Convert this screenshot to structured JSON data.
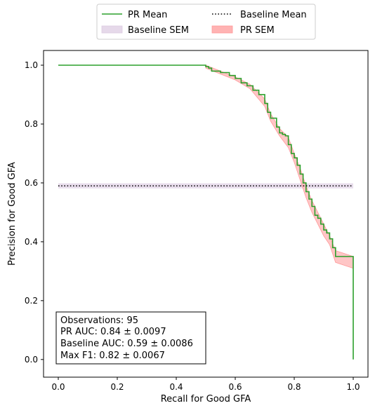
{
  "chart_data": {
    "type": "line",
    "xlabel": "Recall for Good GFA",
    "ylabel": "Precision for Good GFA",
    "xlim": [
      -0.05,
      1.05
    ],
    "ylim": [
      -0.06,
      1.05
    ],
    "xticks": [
      "0.0",
      "0.2",
      "0.4",
      "0.6",
      "0.8",
      "1.0"
    ],
    "yticks": [
      "0.0",
      "0.2",
      "0.4",
      "0.6",
      "0.8",
      "1.0"
    ],
    "grid": false,
    "legend_position": "top-center, above plot",
    "legend": {
      "pr_mean": "PR Mean",
      "baseline_mean": "Baseline Mean",
      "baseline_sem": "Baseline SEM",
      "pr_sem": "PR SEM"
    },
    "colors": {
      "pr_mean": "#2ca02c",
      "baseline_mean": "#000000",
      "baseline_sem": "#e6d9ea",
      "pr_sem": "#ff9999"
    },
    "series": [
      {
        "name": "PR Mean",
        "x": [
          0.0,
          0.48,
          0.5,
          0.51,
          0.52,
          0.55,
          0.58,
          0.6,
          0.62,
          0.64,
          0.66,
          0.68,
          0.7,
          0.71,
          0.72,
          0.74,
          0.75,
          0.76,
          0.77,
          0.78,
          0.79,
          0.8,
          0.81,
          0.82,
          0.83,
          0.84,
          0.85,
          0.86,
          0.87,
          0.88,
          0.89,
          0.9,
          0.91,
          0.92,
          0.93,
          0.94,
          1.0,
          1.0
        ],
        "y": [
          1.0,
          1.0,
          0.995,
          0.99,
          0.98,
          0.975,
          0.965,
          0.955,
          0.94,
          0.93,
          0.915,
          0.9,
          0.87,
          0.84,
          0.82,
          0.79,
          0.77,
          0.765,
          0.76,
          0.73,
          0.7,
          0.685,
          0.66,
          0.63,
          0.6,
          0.57,
          0.545,
          0.52,
          0.49,
          0.48,
          0.46,
          0.44,
          0.43,
          0.41,
          0.38,
          0.35,
          0.33,
          0.0
        ]
      },
      {
        "name": "Baseline Mean",
        "x": [
          0.0,
          1.0
        ],
        "y": [
          0.59,
          0.59
        ]
      }
    ],
    "bands": [
      {
        "name": "Baseline SEM",
        "x": [
          0.0,
          1.0
        ],
        "lower": [
          0.5814,
          0.5814
        ],
        "upper": [
          0.5986,
          0.5986
        ]
      },
      {
        "name": "PR SEM",
        "x": [
          0.5,
          0.55,
          0.6,
          0.65,
          0.7,
          0.72,
          0.75,
          0.78,
          0.8,
          0.82,
          0.84,
          0.86,
          0.88,
          0.9,
          0.92,
          0.94,
          0.97,
          1.0
        ],
        "lower": [
          0.99,
          0.97,
          0.95,
          0.92,
          0.86,
          0.81,
          0.76,
          0.72,
          0.67,
          0.61,
          0.55,
          0.5,
          0.46,
          0.42,
          0.39,
          0.33,
          0.32,
          0.31
        ],
        "upper": [
          1.0,
          0.98,
          0.96,
          0.935,
          0.885,
          0.835,
          0.785,
          0.755,
          0.7,
          0.65,
          0.59,
          0.54,
          0.5,
          0.46,
          0.42,
          0.37,
          0.36,
          0.35
        ]
      }
    ],
    "annotation": [
      "Observations: 95",
      "PR AUC: 0.84 ± 0.0097",
      "Baseline AUC: 0.59 ± 0.0086",
      "Max F1: 0.82 ± 0.0067"
    ]
  }
}
